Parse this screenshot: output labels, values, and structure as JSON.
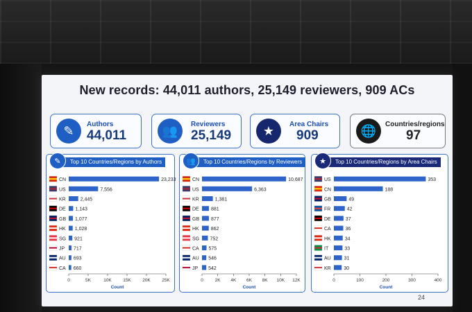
{
  "title": "New records: 44,011 authors, 25,149 reviewers, 909 ACs",
  "stats": [
    {
      "label": "Authors",
      "value": "44,011",
      "icon": "pen-icon"
    },
    {
      "label": "Reviewers",
      "value": "25,149",
      "icon": "group-icon"
    },
    {
      "label": "Area Chairs",
      "value": "909",
      "icon": "person-star-icon"
    },
    {
      "label": "Countries/regions",
      "value": "97",
      "icon": "globe-icon"
    }
  ],
  "page_number": "24",
  "colors": {
    "accent": "#1f5fc4",
    "navy": "#1b2a78",
    "bar": "#2e63c9"
  },
  "chart_data": [
    {
      "type": "bar",
      "orientation": "horizontal",
      "title": "Top 10 Countries/Regions by Authors",
      "xlabel": "Count",
      "categories": [
        "CN",
        "US",
        "KR",
        "DE",
        "GB",
        "HK",
        "SG",
        "JP",
        "AU",
        "CA"
      ],
      "values": [
        23233,
        7556,
        2445,
        1143,
        1077,
        1028,
        921,
        717,
        693,
        660
      ],
      "labels": [
        "23,233",
        "7,556",
        "2,445",
        "1,143",
        "1,077",
        "1,028",
        "921",
        "717",
        "693",
        "660"
      ],
      "xlim": [
        0,
        25000
      ],
      "ticks": [
        0,
        5000,
        10000,
        15000,
        20000,
        25000
      ],
      "tick_labels": [
        "0",
        "5K",
        "10K",
        "15K",
        "20K",
        "25K"
      ]
    },
    {
      "type": "bar",
      "orientation": "horizontal",
      "title": "Top 10 Countries/Regions by Reviewers",
      "xlabel": "Count",
      "categories": [
        "CN",
        "US",
        "KR",
        "DE",
        "GB",
        "HK",
        "SG",
        "CA",
        "AU",
        "JP"
      ],
      "values": [
        10687,
        6363,
        1381,
        881,
        877,
        862,
        752,
        575,
        546,
        542
      ],
      "labels": [
        "10,687",
        "6,363",
        "1,381",
        "881",
        "877",
        "862",
        "752",
        "575",
        "546",
        "542"
      ],
      "xlim": [
        0,
        12000
      ],
      "ticks": [
        0,
        2000,
        4000,
        6000,
        8000,
        10000,
        12000
      ],
      "tick_labels": [
        "0",
        "2K",
        "4K",
        "6K",
        "8K",
        "10K",
        "12K"
      ]
    },
    {
      "type": "bar",
      "orientation": "horizontal",
      "title": "Top 10 Countries/Regions by Area Chairs",
      "xlabel": "Count",
      "categories": [
        "US",
        "CN",
        "GB",
        "FR",
        "DE",
        "CA",
        "HK",
        "IT",
        "AU",
        "KR"
      ],
      "values": [
        353,
        188,
        49,
        42,
        37,
        36,
        34,
        33,
        31,
        30
      ],
      "labels": [
        "353",
        "188",
        "49",
        "42",
        "37",
        "36",
        "34",
        "33",
        "31",
        "30"
      ],
      "xlim": [
        0,
        400
      ],
      "ticks": [
        0,
        100,
        200,
        300,
        400
      ],
      "tick_labels": [
        "0",
        "100",
        "200",
        "300",
        "400"
      ]
    }
  ]
}
